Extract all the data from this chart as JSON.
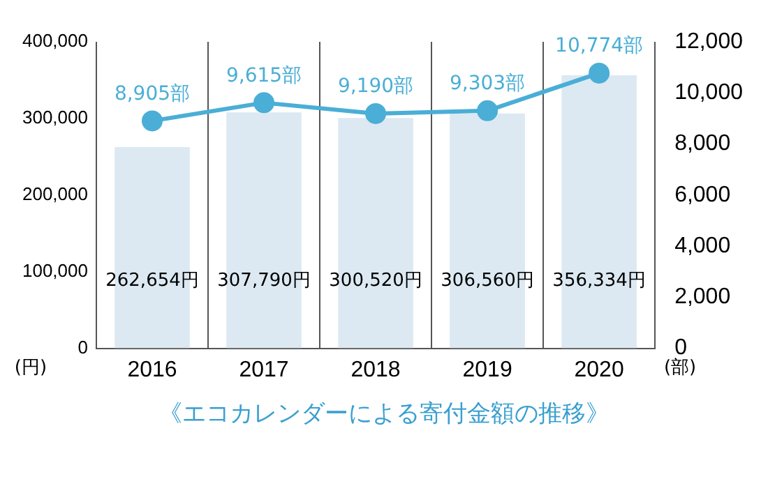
{
  "chart_data": {
    "type": "bar",
    "title": "《エコカレンダーによる寄付金額の推移》",
    "categories": [
      "2016",
      "2017",
      "2018",
      "2019",
      "2020"
    ],
    "ylabel": "(円)",
    "y2label": "(部)",
    "series": [
      {
        "color": "#dce9f2",
        "values": [
          262654,
          307790,
          300520,
          306560,
          356334
        ],
        "value_labels": [
          "262,654円",
          "307,790円",
          "300,520円",
          "306,560円",
          "356,334円"
        ]
      },
      {
        "type": "line",
        "axis": "y2",
        "color": "#4aaed6",
        "marker": "circle",
        "line_style": "solid",
        "values": [
          8905,
          9615,
          9190,
          9303,
          10774
        ],
        "value_labels": [
          "8,905部",
          "9,615部",
          "9,190部",
          "9,303部",
          "10,774部"
        ]
      }
    ],
    "ylim": [
      0,
      400000
    ],
    "yticks": [
      0,
      {
        "value": 100000,
        "label": "100,000"
      },
      {
        "value": 200000,
        "label": "200,000"
      },
      {
        "value": 300000,
        "label": "300,000"
      },
      {
        "value": 400000,
        "label": "400,000"
      }
    ],
    "y2lim": [
      0,
      12000
    ],
    "y2ticks": [
      0,
      {
        "value": 2000,
        "label": "2,000"
      },
      {
        "value": 4000,
        "label": "4,000"
      },
      {
        "value": 6000,
        "label": "6,000"
      },
      {
        "value": 8000,
        "label": "8,000"
      },
      {
        "value": 10000,
        "label": "10,000"
      },
      {
        "value": 12000,
        "label": "12,000"
      }
    ],
    "grid": "x",
    "legend": false
  }
}
